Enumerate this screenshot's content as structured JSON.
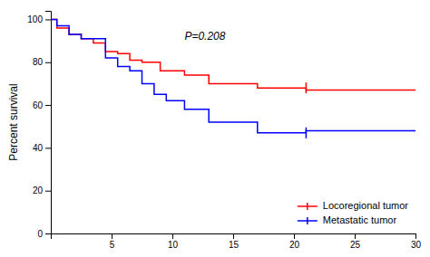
{
  "chart_data": {
    "type": "line",
    "y_label": "Percent survival",
    "xlim": [
      0,
      30
    ],
    "ylim": [
      0,
      104
    ],
    "xticks": [
      5,
      10,
      15,
      20,
      25,
      30
    ],
    "yticks": [
      0,
      20,
      40,
      60,
      80,
      100
    ],
    "grid": false,
    "legend": "lower right",
    "line_style": "step",
    "series": [
      {
        "name": "Locoregional tumor",
        "color": "#FF0000",
        "x": [
          0,
          0.5,
          0.5,
          1.5,
          1.5,
          2.5,
          2.5,
          3.5,
          3.5,
          4.5,
          4.5,
          5.5,
          5.5,
          6.5,
          6.5,
          7.5,
          7.5,
          9,
          9,
          11,
          11,
          13,
          13,
          17,
          17,
          21,
          21,
          30
        ],
        "values": [
          100,
          100,
          96,
          96,
          93,
          93,
          91,
          91,
          89,
          89,
          85,
          85,
          84,
          84,
          81,
          81,
          80,
          80,
          76,
          76,
          74,
          74,
          70,
          70,
          68,
          68,
          67,
          67
        ],
        "censor_x": [
          21
        ],
        "censor_y": [
          68
        ]
      },
      {
        "name": "Metastatic tumor",
        "color": "#0000FF",
        "x": [
          0,
          0.5,
          0.5,
          1.5,
          1.5,
          2.5,
          2.5,
          4.5,
          4.5,
          5.5,
          5.5,
          6.5,
          6.5,
          7.5,
          7.5,
          8.5,
          8.5,
          9.5,
          9.5,
          11,
          11,
          13,
          13,
          17,
          17,
          21,
          21,
          30
        ],
        "values": [
          100,
          100,
          97,
          97,
          93,
          93,
          91,
          91,
          82,
          82,
          78,
          78,
          76,
          76,
          70,
          70,
          65,
          65,
          62,
          62,
          58,
          58,
          52,
          52,
          47,
          47,
          48,
          48
        ],
        "censor_x": [
          21
        ],
        "censor_y": [
          47
        ]
      }
    ],
    "annotations": [
      {
        "text": "P=0.208",
        "x": 11,
        "y": 94
      }
    ]
  }
}
